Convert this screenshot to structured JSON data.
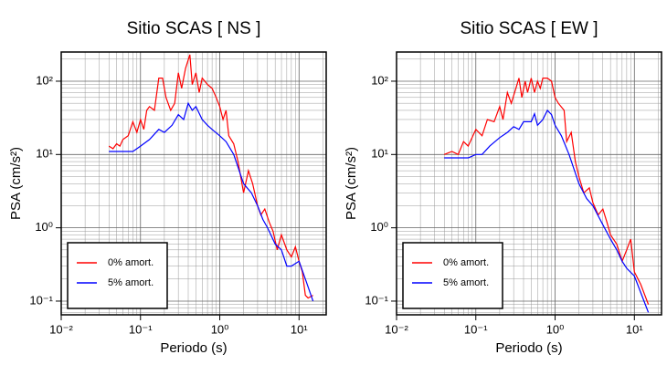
{
  "chart_data": [
    {
      "type": "line",
      "title": "Sitio SCAS [ NS ]",
      "x_label": "Periodo (s)",
      "y_label": "PSA (cm/s²)",
      "log_x": true,
      "log_y": true,
      "grid": true,
      "legend": "lower left",
      "xlim": [
        0.01,
        22
      ],
      "ylim": [
        0.065,
        250
      ],
      "xticks": [
        {
          "value": 0.01,
          "label": "10⁻²"
        },
        {
          "value": 0.1,
          "label": "10⁻¹"
        },
        {
          "value": 1,
          "label": "10⁰"
        },
        {
          "value": 10,
          "label": "10¹"
        }
      ],
      "yticks": [
        {
          "value": 0.1,
          "label": "10⁻¹"
        },
        {
          "value": 1,
          "label": "10⁰"
        },
        {
          "value": 10,
          "label": "10¹"
        },
        {
          "value": 100,
          "label": "10²"
        }
      ],
      "series": [
        {
          "name": "0% amort.",
          "color": "#ff0000",
          "x": [
            0.04,
            0.045,
            0.05,
            0.055,
            0.06,
            0.07,
            0.08,
            0.09,
            0.1,
            0.11,
            0.12,
            0.13,
            0.15,
            0.17,
            0.19,
            0.21,
            0.24,
            0.27,
            0.3,
            0.33,
            0.37,
            0.42,
            0.45,
            0.5,
            0.55,
            0.6,
            0.7,
            0.8,
            0.9,
            1.0,
            1.1,
            1.2,
            1.3,
            1.5,
            1.7,
            2.0,
            2.3,
            2.6,
            3.0,
            3.3,
            3.7,
            4.2,
            4.7,
            5.3,
            6,
            7,
            8,
            9,
            10,
            11,
            12,
            13,
            15
          ],
          "values": [
            13,
            12,
            14,
            13,
            16,
            18,
            28,
            20,
            30,
            22,
            40,
            45,
            40,
            110,
            110,
            60,
            40,
            50,
            130,
            80,
            150,
            230,
            90,
            130,
            70,
            110,
            90,
            80,
            60,
            45,
            30,
            40,
            18,
            14,
            8,
            3,
            6,
            4,
            2,
            1.5,
            1.8,
            1.2,
            0.9,
            0.5,
            0.8,
            0.5,
            0.4,
            0.55,
            0.35,
            0.25,
            0.12,
            0.11,
            0.12
          ]
        },
        {
          "name": "5% amort.",
          "color": "#0000ff",
          "x": [
            0.04,
            0.06,
            0.08,
            0.1,
            0.13,
            0.17,
            0.2,
            0.25,
            0.3,
            0.35,
            0.4,
            0.45,
            0.5,
            0.6,
            0.7,
            0.8,
            1.0,
            1.2,
            1.5,
            2.0,
            2.5,
            3.0,
            3.5,
            4,
            5,
            6,
            7,
            8,
            10,
            12,
            15
          ],
          "values": [
            11,
            11,
            11,
            13,
            16,
            22,
            20,
            25,
            35,
            30,
            50,
            40,
            45,
            30,
            25,
            22,
            18,
            15,
            10,
            4,
            3,
            2,
            1.3,
            1,
            0.6,
            0.5,
            0.3,
            0.3,
            0.35,
            0.2,
            0.1
          ]
        }
      ]
    },
    {
      "type": "line",
      "title": "Sitio SCAS [ EW ]",
      "x_label": "Periodo (s)",
      "y_label": "PSA (cm/s²)",
      "log_x": true,
      "log_y": true,
      "grid": true,
      "legend": "lower left",
      "xlim": [
        0.01,
        22
      ],
      "ylim": [
        0.065,
        250
      ],
      "xticks": [
        {
          "value": 0.01,
          "label": "10⁻²"
        },
        {
          "value": 0.1,
          "label": "10⁻¹"
        },
        {
          "value": 1,
          "label": "10⁰"
        },
        {
          "value": 10,
          "label": "10¹"
        }
      ],
      "yticks": [
        {
          "value": 0.1,
          "label": "10⁻¹"
        },
        {
          "value": 1,
          "label": "10⁰"
        },
        {
          "value": 10,
          "label": "10¹"
        },
        {
          "value": 100,
          "label": "10²"
        }
      ],
      "series": [
        {
          "name": "0% amort.",
          "color": "#ff0000",
          "x": [
            0.04,
            0.05,
            0.06,
            0.07,
            0.08,
            0.1,
            0.12,
            0.14,
            0.17,
            0.2,
            0.22,
            0.25,
            0.28,
            0.32,
            0.35,
            0.38,
            0.42,
            0.45,
            0.5,
            0.55,
            0.6,
            0.65,
            0.7,
            0.8,
            0.9,
            1.0,
            1.1,
            1.3,
            1.4,
            1.6,
            1.8,
            2.0,
            2.3,
            2.7,
            3,
            3.5,
            4,
            4.5,
            5,
            6,
            7,
            8,
            9,
            10,
            12,
            15
          ],
          "values": [
            10,
            11,
            10,
            15,
            13,
            22,
            18,
            30,
            28,
            45,
            30,
            70,
            50,
            80,
            110,
            60,
            100,
            70,
            110,
            70,
            100,
            80,
            110,
            110,
            100,
            60,
            50,
            40,
            15,
            20,
            8,
            5,
            3,
            3.5,
            2.2,
            1.5,
            1.8,
            1.2,
            0.8,
            0.6,
            0.35,
            0.5,
            0.7,
            0.25,
            0.17,
            0.09
          ]
        },
        {
          "name": "5% amort.",
          "color": "#0000ff",
          "x": [
            0.04,
            0.06,
            0.08,
            0.1,
            0.12,
            0.15,
            0.2,
            0.25,
            0.3,
            0.35,
            0.4,
            0.5,
            0.55,
            0.6,
            0.7,
            0.8,
            0.9,
            1.0,
            1.2,
            1.5,
            2.0,
            2.5,
            3,
            4,
            5,
            6,
            7,
            8,
            10,
            15
          ],
          "values": [
            9,
            9,
            9,
            10,
            10,
            13,
            17,
            20,
            24,
            22,
            28,
            28,
            36,
            25,
            30,
            40,
            35,
            25,
            18,
            10,
            4,
            2.5,
            2,
            1.1,
            0.7,
            0.5,
            0.35,
            0.28,
            0.22,
            0.07
          ]
        }
      ]
    }
  ]
}
